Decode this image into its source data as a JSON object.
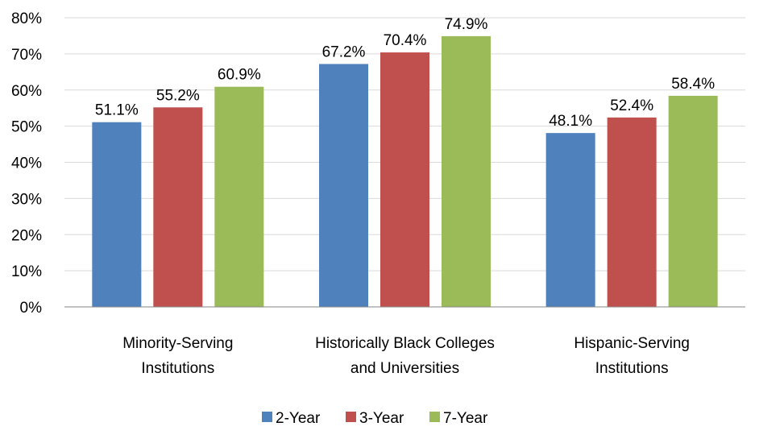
{
  "chart_data": {
    "type": "bar",
    "title": "",
    "xlabel": "",
    "ylabel": "",
    "ylim": [
      0,
      80
    ],
    "y_ticks": [
      "0%",
      "10%",
      "20%",
      "30%",
      "40%",
      "50%",
      "60%",
      "70%",
      "80%"
    ],
    "y_tick_values": [
      0,
      10,
      20,
      30,
      40,
      50,
      60,
      70,
      80
    ],
    "grid": true,
    "legend_position": "bottom",
    "categories": [
      [
        "Minority-Serving",
        "Institutions"
      ],
      [
        "Historically Black Colleges",
        "and Universities"
      ],
      [
        "Hispanic-Serving",
        "Institutions"
      ]
    ],
    "series": [
      {
        "name": "2-Year",
        "color": "#4F81BD",
        "values": [
          51.1,
          67.2,
          48.1
        ],
        "labels": [
          "51.1%",
          "67.2%",
          "48.1%"
        ]
      },
      {
        "name": "3-Year",
        "color": "#C0504D",
        "values": [
          55.2,
          70.4,
          52.4
        ],
        "labels": [
          "55.2%",
          "70.4%",
          "52.4%"
        ]
      },
      {
        "name": "7-Year",
        "color": "#9BBB59",
        "values": [
          60.9,
          74.9,
          58.4
        ],
        "labels": [
          "60.9%",
          "74.9%",
          "58.4%"
        ]
      }
    ]
  }
}
